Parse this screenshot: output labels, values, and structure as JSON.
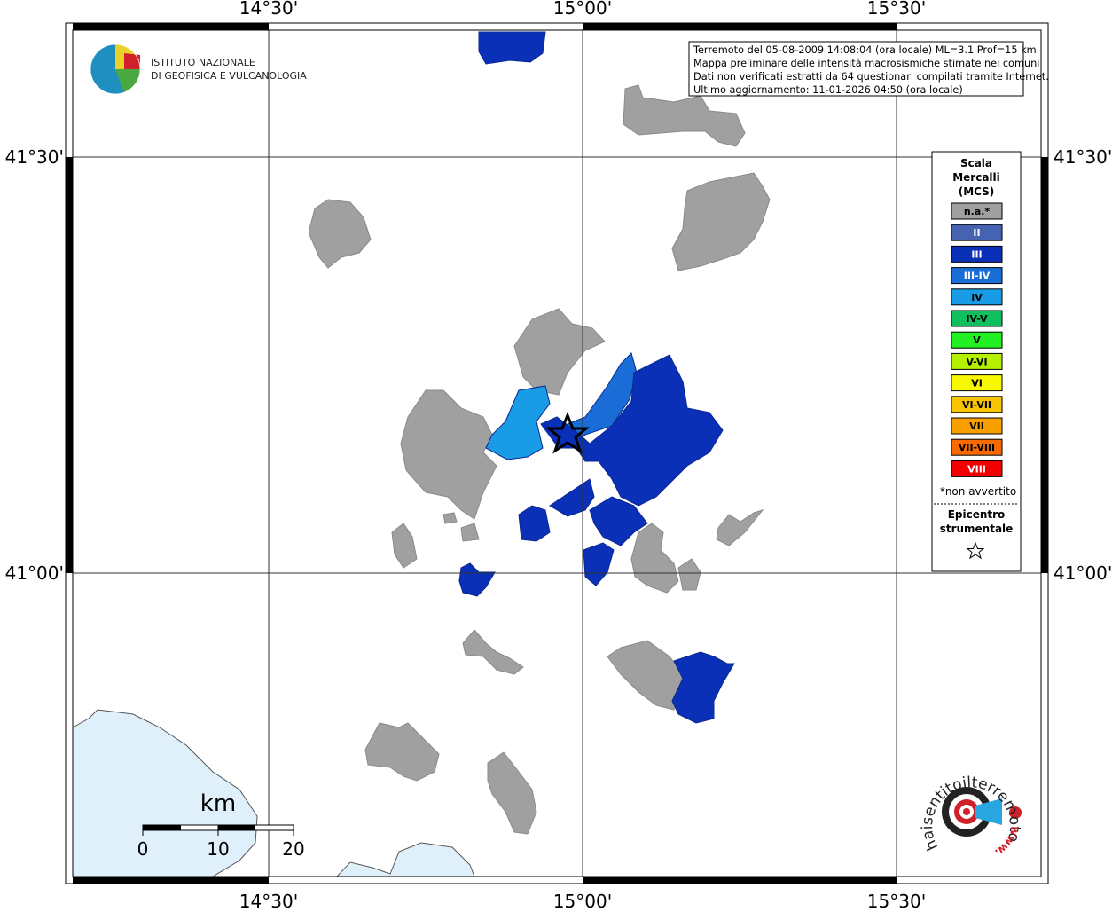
{
  "map": {
    "lon_labels": [
      "14°30'",
      "15°00'",
      "15°30'"
    ],
    "lat_labels": [
      "41°30'",
      "41°00'"
    ],
    "info_lines": [
      "Terremoto del 05-08-2009 14:08:04 (ora locale) ML=3.1 Prof=15 km",
      "Mappa preliminare delle intensità macrosismiche stimate nei comuni",
      "Dati non verificati estratti da 64 questionari compilati tramite Internet.",
      "Ultimo aggiornamento: 11-01-2026 04:50 (ora locale)"
    ],
    "logo_lines": [
      "ISTITUTO NAZIONALE",
      "DI GEOFISICA E VULCANOLOGIA"
    ],
    "legend": {
      "title_lines": [
        "Scala",
        "Mercalli",
        "(MCS)"
      ],
      "items": [
        {
          "label": "n.a.*",
          "color": "#a0a0a0"
        },
        {
          "label": "II",
          "color": "#4563b0"
        },
        {
          "label": "III",
          "color": "#0b30b8"
        },
        {
          "label": "III-IV",
          "color": "#1a6cd6"
        },
        {
          "label": "IV",
          "color": "#1a9be6"
        },
        {
          "label": "IV-V",
          "color": "#10bf5e"
        },
        {
          "label": "V",
          "color": "#22f022"
        },
        {
          "label": "V-VI",
          "color": "#b4f000"
        },
        {
          "label": "VI",
          "color": "#f8f800"
        },
        {
          "label": "VI-VII",
          "color": "#f8c400"
        },
        {
          "label": "VII",
          "color": "#f8a000"
        },
        {
          "label": "VII-VIII",
          "color": "#f86a00"
        },
        {
          "label": "VIII",
          "color": "#f00000"
        }
      ],
      "note": "*non avvertito",
      "epicenter_lines": [
        "Epicentro",
        "strumentale"
      ]
    },
    "scale": {
      "unit": "km",
      "labels": [
        "0",
        "10",
        "20"
      ]
    },
    "site": {
      "name": "haisentitoilterremoto.it",
      "prefix": "www."
    }
  }
}
